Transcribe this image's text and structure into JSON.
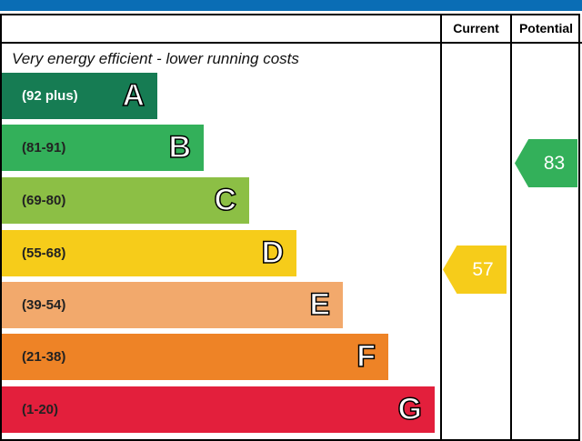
{
  "header": {
    "current": "Current",
    "potential": "Potential"
  },
  "note": "Very energy efficient - lower running costs",
  "chart_data": {
    "type": "bar",
    "bands": [
      {
        "letter": "A",
        "range": "(92 plus)",
        "color": "#167c53"
      },
      {
        "letter": "B",
        "range": "(81-91)",
        "color": "#33b05a"
      },
      {
        "letter": "C",
        "range": "(69-80)",
        "color": "#8cbf45"
      },
      {
        "letter": "D",
        "range": "(55-68)",
        "color": "#f6cc1a"
      },
      {
        "letter": "E",
        "range": "(39-54)",
        "color": "#f2a96c"
      },
      {
        "letter": "F",
        "range": "(21-38)",
        "color": "#ee8326"
      },
      {
        "letter": "G",
        "range": "(1-20)",
        "color": "#e31f3c"
      }
    ],
    "current": {
      "value": "57",
      "band": "D",
      "color": "#f6cc1a"
    },
    "potential": {
      "value": "83",
      "band": "B",
      "color": "#33b05a"
    }
  }
}
